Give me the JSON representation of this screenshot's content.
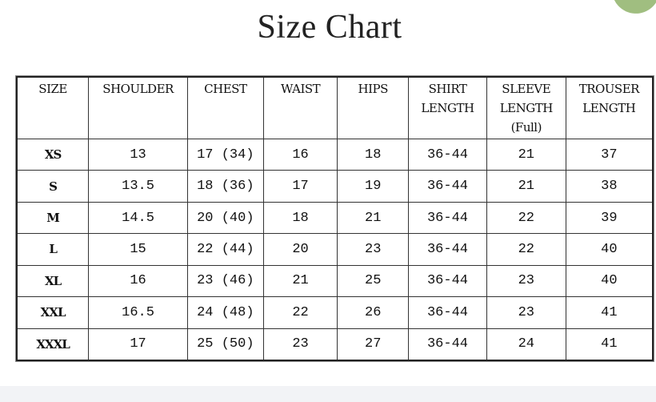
{
  "title": "Size Chart",
  "headers": [
    [
      "SIZE"
    ],
    [
      "SHOULDER"
    ],
    [
      "CHEST"
    ],
    [
      "WAIST"
    ],
    [
      "HIPS"
    ],
    [
      "SHIRT",
      "LENGTH"
    ],
    [
      "SLEEVE",
      "LENGTH",
      "(Full)"
    ],
    [
      "TROUSER",
      "LENGTH"
    ]
  ],
  "rows": [
    [
      "XS",
      "13",
      "17 (34)",
      "16",
      "18",
      "36-44",
      "21",
      "37"
    ],
    [
      "S",
      "13.5",
      "18 (36)",
      "17",
      "19",
      "36-44",
      "21",
      "38"
    ],
    [
      "M",
      "14.5",
      "20 (40)",
      "18",
      "21",
      "36-44",
      "22",
      "39"
    ],
    [
      "L",
      "15",
      "22 (44)",
      "20",
      "23",
      "36-44",
      "22",
      "40"
    ],
    [
      "XL",
      "16",
      "23 (46)",
      "21",
      "25",
      "36-44",
      "23",
      "40"
    ],
    [
      "XXL",
      "16.5",
      "24 (48)",
      "22",
      "26",
      "36-44",
      "23",
      "41"
    ],
    [
      "XXXL",
      "17",
      "25 (50)",
      "23",
      "27",
      "36-44",
      "24",
      "41"
    ]
  ],
  "colors": {
    "text": "#111111",
    "border": "#333333",
    "leaf": "#8fb36a"
  }
}
